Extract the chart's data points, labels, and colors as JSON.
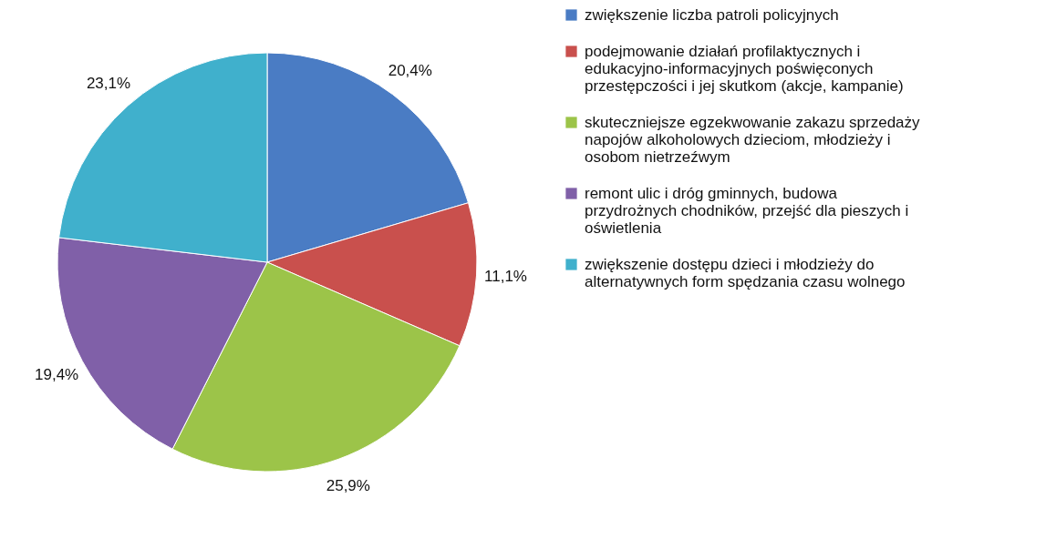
{
  "chart_data": {
    "type": "pie",
    "categories": [
      "zwiększenie liczba patroli policyjnych",
      "podejmowanie działań profilaktycznych i edukacyjno-informacyjnych poświęconych przestępczości i jej skutkom (akcje, kampanie)",
      "skuteczniejsze egzekwowanie zakazu sprzedaży napojów alkoholowych dzieciom, młodzieży i osobom nietrzeźwym",
      "remont ulic i dróg gminnych, budowa przydrożnych chodników, przejść dla pieszych i oświetlenia",
      "zwiększenie dostępu dzieci i młodzieży do alternatywnych form spędzania czasu wolnego"
    ],
    "values": [
      20.4,
      11.1,
      25.9,
      19.4,
      23.1
    ],
    "colors": [
      "#4a7cc4",
      "#c9504d",
      "#9cc449",
      "#8060a8",
      "#40b0cc"
    ],
    "value_labels": [
      "20,4%",
      "11,1%",
      "25,9%",
      "19,4%",
      "23,1%"
    ],
    "legend": "right"
  }
}
